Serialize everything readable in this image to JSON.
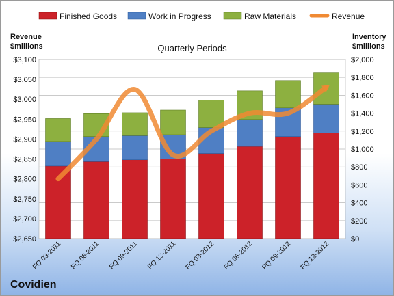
{
  "company": "Covidien",
  "chart_data": {
    "type": "bar",
    "subtype": "stacked-bar-with-line",
    "title": "Quarterly Periods",
    "categories": [
      "FQ 03-2011",
      "FQ 06-2011",
      "FQ 09-2011",
      "FQ 12-2011",
      "FQ 03-2012",
      "FQ 06-2012",
      "FQ 09-2012",
      "FQ 12-2012"
    ],
    "series": [
      {
        "name": "Finished Goods",
        "axis": "right",
        "color": "#cc2229",
        "values": [
          810,
          860,
          880,
          890,
          950,
          1030,
          1140,
          1180
        ]
      },
      {
        "name": "Work in Progress",
        "axis": "right",
        "color": "#4f7fc4",
        "values": [
          275,
          280,
          270,
          270,
          290,
          300,
          320,
          320
        ]
      },
      {
        "name": "Raw Materials",
        "axis": "right",
        "color": "#8db040",
        "values": [
          255,
          255,
          255,
          275,
          305,
          320,
          305,
          350
        ]
      },
      {
        "name": "Revenue",
        "axis": "left",
        "type": "line",
        "color": "#f08a33",
        "values": [
          2800,
          2900,
          3025,
          2860,
          2920,
          2965,
          2965,
          3030
        ]
      }
    ],
    "ylabel_left": "Revenue\n$millions",
    "ylabel_right": "Inventory\n$millions",
    "ylim_left": [
      2650,
      3100
    ],
    "ylim_right": [
      0,
      2000
    ],
    "yticks_left": [
      "$2,650",
      "$2,700",
      "$2,750",
      "$2,800",
      "$2,850",
      "$2,900",
      "$2,950",
      "$3,000",
      "$3,050",
      "$3,100"
    ],
    "yticks_right": [
      "$0",
      "$200",
      "$400",
      "$600",
      "$800",
      "$1,000",
      "$1,200",
      "$1,400",
      "$1,600",
      "$1,800",
      "$2,000"
    ],
    "legend": "top",
    "grid": true
  }
}
